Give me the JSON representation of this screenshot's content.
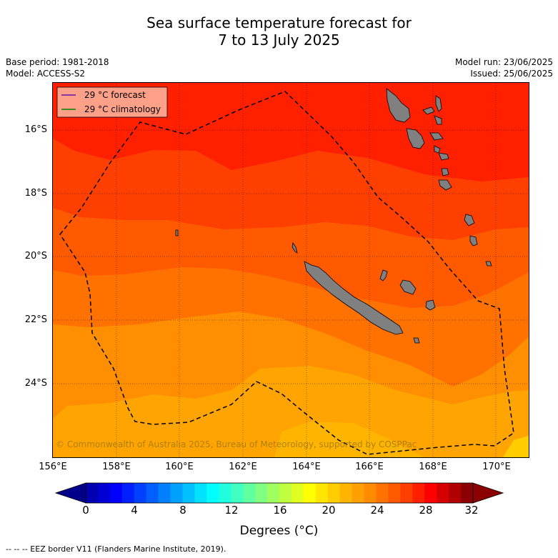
{
  "title": {
    "line1": "Sea surface temperature forecast for",
    "line2": "7 to 13 July 2025"
  },
  "meta": {
    "base_period": "Base period: 1981-2018",
    "model": "Model: ACCESS-S2",
    "model_run": "Model run: 23/06/2025",
    "issued": "Issued: 25/06/2025"
  },
  "map": {
    "lat_labels": [
      "16°S",
      "18°S",
      "20°S",
      "22°S",
      "24°S"
    ],
    "lon_labels": [
      "156°E",
      "158°E",
      "160°E",
      "162°E",
      "164°E",
      "166°E",
      "168°E",
      "170°E"
    ],
    "copyright": "© Commonwealth of Australia 2025, Bureau of Meteorology, supported by COSPPac",
    "band_colors": [
      "#ff2000",
      "#ff3f00",
      "#ff5a00",
      "#ff7200",
      "#ff8e00",
      "#ffa400",
      "#ffb400",
      "#ffcd00",
      "#ffe600"
    ],
    "land_color": "#808080"
  },
  "legend": {
    "forecast_label": "29 °C  forecast",
    "forecast_color": "#6a0dad",
    "climatology_label": "29 °C  climatology",
    "climatology_color": "#008000"
  },
  "colorbar": {
    "ticks": [
      "0",
      "4",
      "8",
      "12",
      "16",
      "20",
      "24",
      "28",
      "32"
    ],
    "label": "Degrees (°C)",
    "colors": [
      "#00008b",
      "#0000b0",
      "#0000d5",
      "#0000ff",
      "#0020ff",
      "#0040ff",
      "#0060ff",
      "#0080ff",
      "#00a0ff",
      "#00c0ff",
      "#00e0ff",
      "#00ffff",
      "#20ffe0",
      "#40ffc0",
      "#60ffa0",
      "#80ff80",
      "#a0ff60",
      "#c0ff40",
      "#e0ff20",
      "#ffff00",
      "#ffe600",
      "#ffcd00",
      "#ffb400",
      "#ffa000",
      "#ff8c00",
      "#ff7200",
      "#ff5a00",
      "#ff3f00",
      "#ff2000",
      "#ff0000",
      "#d50000",
      "#b00000",
      "#8b0000"
    ]
  },
  "footer": "--  --  -- EEZ border V11 (Flanders Marine Institute, 2019)."
}
